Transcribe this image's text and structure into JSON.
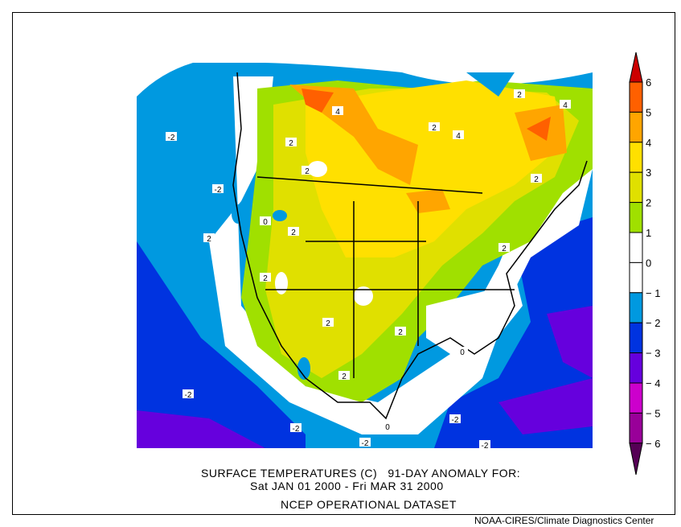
{
  "title": {
    "line1": "SURFACE TEMPERATURES (C)   91-DAY ANOMALY FOR:",
    "line2": "Sat JAN 01 2000 - Fri MAR 31 2000",
    "dataset": "NCEP OPERATIONAL DATASET"
  },
  "credit": "NOAA-CIRES/Climate Diagnostics Center",
  "colorbar": {
    "levels": [
      "6",
      "5",
      "4",
      "3",
      "2",
      "1",
      "0",
      "-1",
      "-2",
      "-3",
      "-4",
      "-5",
      "-6"
    ],
    "colors": {
      "above_6": "#cc0000",
      "5_6": "#ff6000",
      "4_5": "#ffa500",
      "3_4": "#ffe000",
      "2_3": "#e0e000",
      "1_2": "#a0e000",
      "0_1": "#ffffff",
      "m1_0": "#ffffff",
      "m2_m1": "#0099e0",
      "m3_m2": "#0033e0",
      "m4_m3": "#6600dd",
      "m5_m4": "#cc00cc",
      "m6_m5": "#990099",
      "below_m6": "#550055"
    }
  },
  "contour_labels": [
    "-2",
    "-2",
    "0",
    "2",
    "2",
    "4",
    "2",
    "4",
    "2",
    "4",
    "2",
    "2",
    "2",
    "2",
    "2",
    "2",
    "0",
    "-2",
    "-2",
    "-2",
    "-2",
    "-2",
    "0",
    "2",
    "2"
  ]
}
